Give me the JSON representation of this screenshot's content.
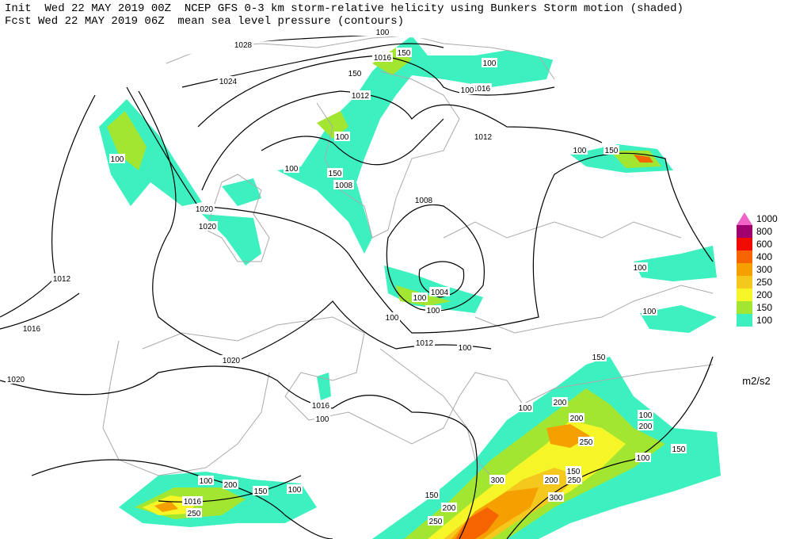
{
  "header": {
    "line1": "Init  Wed 22 MAY 2019 00Z  NCEP GFS 0-3 km storm-relative helicity using Bunkers Storm motion (shaded)",
    "line2": "Fcst Wed 22 MAY 2019 06Z  mean sea level pressure (contours)"
  },
  "colorbar": {
    "levels": [
      {
        "label": "100",
        "color": "#3cf0c0"
      },
      {
        "label": "150",
        "color": "#a2e632"
      },
      {
        "label": "200",
        "color": "#f5f528"
      },
      {
        "label": "250",
        "color": "#f5c81e"
      },
      {
        "label": "300",
        "color": "#f5a000"
      },
      {
        "label": "400",
        "color": "#f56400"
      },
      {
        "label": "600",
        "color": "#f00a00"
      },
      {
        "label": "800",
        "color": "#a0006e"
      },
      {
        "label": "1000",
        "color": "#f064c8"
      }
    ],
    "units": "m2/s2"
  },
  "contour_labels": [
    "1028",
    "1024",
    "1016",
    "1012",
    "1016",
    "1012",
    "1008",
    "1020",
    "1020",
    "1008",
    "1012",
    "1004",
    "1016",
    "1012",
    "1020",
    "1020",
    "1016",
    "1016"
  ],
  "shading_labels": [
    "100",
    "100",
    "100",
    "150",
    "100",
    "150",
    "100",
    "100",
    "150",
    "100",
    "200",
    "200",
    "250",
    "100",
    "200",
    "100",
    "150",
    "150",
    "250",
    "200",
    "300",
    "300",
    "200",
    "250",
    "150",
    "100",
    "200",
    "150",
    "100",
    "250",
    "100",
    "100",
    "100",
    "100",
    "100",
    "100",
    "150",
    "100",
    "150",
    "100"
  ]
}
